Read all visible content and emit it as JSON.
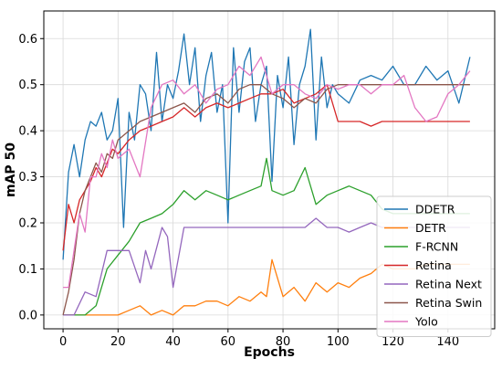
{
  "chart_data": {
    "type": "line",
    "xlabel": "Epochs",
    "ylabel": "mAP 50",
    "xlim": [
      -7,
      157
    ],
    "ylim": [
      -0.03,
      0.66
    ],
    "xticks": [
      0,
      20,
      40,
      60,
      80,
      100,
      120,
      140
    ],
    "yticks": [
      0.0,
      0.1,
      0.2,
      0.3,
      0.4,
      0.5,
      0.6
    ],
    "ytick_labels": [
      "0.0",
      "0.1",
      "0.2",
      "0.3",
      "0.4",
      "0.5",
      "0.6"
    ],
    "grid": true,
    "legend_position": "bottom-right",
    "series": [
      {
        "name": "DDETR",
        "color": "#1f77b4",
        "x": [
          0,
          2,
          4,
          6,
          8,
          10,
          12,
          14,
          16,
          18,
          20,
          22,
          24,
          26,
          28,
          30,
          32,
          34,
          36,
          38,
          40,
          42,
          44,
          46,
          48,
          50,
          52,
          54,
          56,
          58,
          60,
          62,
          64,
          66,
          68,
          70,
          72,
          74,
          76,
          78,
          80,
          82,
          84,
          86,
          88,
          90,
          92,
          94,
          96,
          98,
          100,
          104,
          108,
          112,
          116,
          120,
          124,
          128,
          132,
          136,
          140,
          144,
          148
        ],
        "y": [
          0.12,
          0.31,
          0.37,
          0.3,
          0.38,
          0.42,
          0.41,
          0.44,
          0.38,
          0.4,
          0.47,
          0.19,
          0.44,
          0.38,
          0.5,
          0.48,
          0.4,
          0.57,
          0.42,
          0.5,
          0.47,
          0.53,
          0.61,
          0.5,
          0.58,
          0.42,
          0.52,
          0.57,
          0.44,
          0.5,
          0.2,
          0.58,
          0.44,
          0.55,
          0.58,
          0.42,
          0.5,
          0.54,
          0.29,
          0.52,
          0.45,
          0.56,
          0.37,
          0.5,
          0.54,
          0.62,
          0.38,
          0.56,
          0.45,
          0.5,
          0.48,
          0.46,
          0.51,
          0.52,
          0.51,
          0.54,
          0.5,
          0.5,
          0.54,
          0.51,
          0.53,
          0.46,
          0.56
        ]
      },
      {
        "name": "DETR",
        "color": "#ff7f0e",
        "x": [
          0,
          4,
          8,
          12,
          16,
          20,
          24,
          28,
          32,
          36,
          40,
          44,
          48,
          52,
          56,
          60,
          64,
          68,
          72,
          74,
          76,
          80,
          84,
          88,
          92,
          96,
          100,
          104,
          108,
          112,
          116,
          120,
          124,
          128,
          132,
          136,
          140,
          144,
          148
        ],
        "y": [
          0.0,
          0.0,
          0.0,
          0.0,
          0.0,
          0.0,
          0.01,
          0.02,
          0.0,
          0.01,
          0.0,
          0.02,
          0.02,
          0.03,
          0.03,
          0.02,
          0.04,
          0.03,
          0.05,
          0.04,
          0.12,
          0.04,
          0.06,
          0.03,
          0.07,
          0.05,
          0.07,
          0.06,
          0.08,
          0.09,
          0.11,
          0.1,
          0.1,
          0.1,
          0.11,
          0.11,
          0.11,
          0.11,
          0.11
        ]
      },
      {
        "name": "F-RCNN",
        "color": "#2ca02c",
        "x": [
          0,
          4,
          8,
          12,
          16,
          20,
          24,
          28,
          32,
          36,
          40,
          44,
          48,
          52,
          56,
          60,
          64,
          68,
          72,
          74,
          76,
          80,
          84,
          88,
          92,
          96,
          100,
          104,
          108,
          112,
          116,
          120,
          124,
          128,
          132,
          136,
          140,
          144,
          148
        ],
        "y": [
          0.0,
          0.0,
          0.0,
          0.02,
          0.1,
          0.13,
          0.16,
          0.2,
          0.21,
          0.22,
          0.24,
          0.27,
          0.25,
          0.27,
          0.26,
          0.25,
          0.26,
          0.27,
          0.28,
          0.34,
          0.27,
          0.26,
          0.27,
          0.32,
          0.24,
          0.26,
          0.27,
          0.28,
          0.27,
          0.26,
          0.23,
          0.22,
          0.22,
          0.22,
          0.22,
          0.22,
          0.22,
          0.22,
          0.22
        ]
      },
      {
        "name": "Retina",
        "color": "#d62728",
        "x": [
          0,
          2,
          4,
          6,
          8,
          10,
          12,
          14,
          16,
          18,
          20,
          24,
          28,
          32,
          36,
          40,
          44,
          48,
          52,
          56,
          60,
          64,
          68,
          72,
          76,
          80,
          84,
          88,
          92,
          96,
          100,
          104,
          108,
          112,
          116,
          120,
          124,
          128,
          132,
          136,
          140,
          144,
          148
        ],
        "y": [
          0.14,
          0.24,
          0.2,
          0.25,
          0.27,
          0.29,
          0.32,
          0.3,
          0.33,
          0.36,
          0.35,
          0.38,
          0.4,
          0.41,
          0.42,
          0.43,
          0.45,
          0.43,
          0.45,
          0.46,
          0.45,
          0.46,
          0.47,
          0.48,
          0.48,
          0.49,
          0.46,
          0.47,
          0.48,
          0.5,
          0.42,
          0.42,
          0.42,
          0.41,
          0.42,
          0.42,
          0.42,
          0.42,
          0.42,
          0.42,
          0.42,
          0.42,
          0.42
        ]
      },
      {
        "name": "Retina Next",
        "color": "#9467bd",
        "x": [
          0,
          4,
          8,
          12,
          16,
          20,
          24,
          28,
          30,
          32,
          36,
          38,
          40,
          44,
          48,
          52,
          56,
          60,
          64,
          68,
          72,
          76,
          80,
          84,
          88,
          92,
          96,
          100,
          104,
          108,
          112,
          116,
          120,
          124,
          128,
          132,
          136,
          140,
          144,
          148
        ],
        "y": [
          0.0,
          0.0,
          0.05,
          0.04,
          0.14,
          0.14,
          0.14,
          0.07,
          0.14,
          0.1,
          0.19,
          0.17,
          0.06,
          0.19,
          0.19,
          0.19,
          0.19,
          0.19,
          0.19,
          0.19,
          0.19,
          0.19,
          0.19,
          0.19,
          0.19,
          0.21,
          0.19,
          0.19,
          0.18,
          0.19,
          0.2,
          0.19,
          0.19,
          0.19,
          0.19,
          0.19,
          0.19,
          0.19,
          0.19,
          0.19
        ]
      },
      {
        "name": "Retina Swin",
        "color": "#8c564b",
        "x": [
          0,
          2,
          4,
          6,
          8,
          10,
          12,
          14,
          16,
          18,
          20,
          24,
          28,
          32,
          36,
          40,
          44,
          48,
          52,
          56,
          60,
          64,
          68,
          72,
          76,
          80,
          84,
          88,
          92,
          96,
          100,
          104,
          108,
          112,
          116,
          120,
          124,
          128,
          132,
          136,
          140,
          144,
          148
        ],
        "y": [
          0.0,
          0.05,
          0.12,
          0.22,
          0.27,
          0.3,
          0.33,
          0.31,
          0.35,
          0.34,
          0.38,
          0.4,
          0.42,
          0.43,
          0.44,
          0.45,
          0.46,
          0.44,
          0.47,
          0.48,
          0.46,
          0.49,
          0.5,
          0.5,
          0.48,
          0.47,
          0.45,
          0.47,
          0.46,
          0.49,
          0.5,
          0.5,
          0.5,
          0.5,
          0.5,
          0.5,
          0.5,
          0.5,
          0.5,
          0.5,
          0.5,
          0.5,
          0.5
        ]
      },
      {
        "name": "Yolo",
        "color": "#e377c2",
        "x": [
          0,
          2,
          4,
          6,
          8,
          10,
          12,
          14,
          16,
          18,
          20,
          24,
          28,
          32,
          36,
          40,
          44,
          48,
          52,
          56,
          60,
          64,
          68,
          72,
          76,
          80,
          84,
          88,
          92,
          96,
          100,
          104,
          108,
          112,
          116,
          120,
          124,
          128,
          132,
          136,
          140,
          144,
          148
        ],
        "y": [
          0.06,
          0.06,
          0.14,
          0.22,
          0.18,
          0.3,
          0.3,
          0.35,
          0.32,
          0.38,
          0.34,
          0.36,
          0.3,
          0.45,
          0.5,
          0.51,
          0.48,
          0.5,
          0.46,
          0.49,
          0.5,
          0.54,
          0.52,
          0.56,
          0.48,
          0.5,
          0.5,
          0.48,
          0.47,
          0.5,
          0.49,
          0.5,
          0.5,
          0.48,
          0.5,
          0.5,
          0.52,
          0.45,
          0.42,
          0.43,
          0.48,
          0.5,
          0.53
        ]
      }
    ]
  }
}
